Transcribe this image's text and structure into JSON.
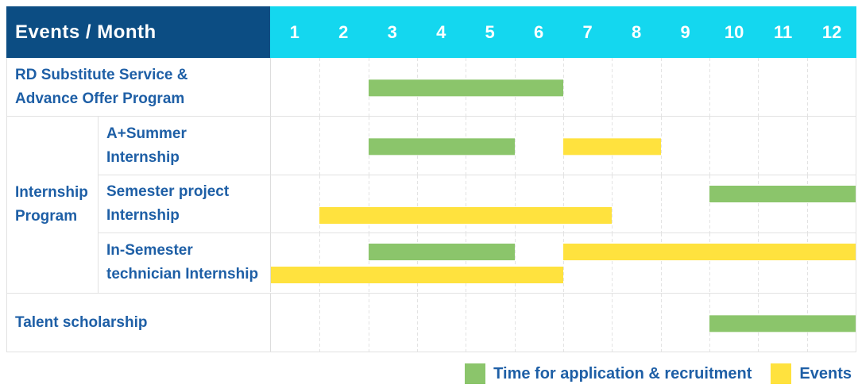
{
  "header": {
    "title": "Events / Month",
    "months": [
      "1",
      "2",
      "3",
      "4",
      "5",
      "6",
      "7",
      "8",
      "9",
      "10",
      "11",
      "12"
    ]
  },
  "colors": {
    "header_bg": "#0C4D83",
    "month_header_bg": "#14D7EF",
    "label_text": "#1E5FA6",
    "application_green": "#8BC56B",
    "events_yellow": "#FFE23E",
    "grid_line": "#E3E3E3"
  },
  "chart_data": {
    "type": "bar",
    "subtype": "gantt-timeline",
    "x_categories": [
      "1",
      "2",
      "3",
      "4",
      "5",
      "6",
      "7",
      "8",
      "9",
      "10",
      "11",
      "12"
    ],
    "x_range": [
      1,
      12
    ],
    "grid": true,
    "series_colors": {
      "Time for application & recruitment": "#8BC56B",
      "Events": "#FFE23E"
    },
    "rows": [
      {
        "group": "",
        "label": "RD Substitute Service &\nAdvance Offer Program",
        "bars": [
          {
            "series": "Time for application & recruitment",
            "start_month": 3,
            "end_month": 6,
            "lane": "center"
          }
        ]
      },
      {
        "group": "Internship\nProgram",
        "label": "A+Summer\nInternship",
        "bars": [
          {
            "series": "Time for application & recruitment",
            "start_month": 3,
            "end_month": 5,
            "lane": "center"
          },
          {
            "series": "Events",
            "start_month": 7,
            "end_month": 8,
            "lane": "center"
          }
        ]
      },
      {
        "group": "Internship\nProgram",
        "label": "Semester project\nInternship",
        "bars": [
          {
            "series": "Time for application & recruitment",
            "start_month": 10,
            "end_month": 12,
            "lane": "top"
          },
          {
            "series": "Events",
            "start_month": 2,
            "end_month": 7,
            "lane": "bottom"
          }
        ]
      },
      {
        "group": "Internship\nProgram",
        "label": "In-Semester\ntechnician Internship",
        "bars": [
          {
            "series": "Time for application & recruitment",
            "start_month": 3,
            "end_month": 5,
            "lane": "top"
          },
          {
            "series": "Events",
            "start_month": 7,
            "end_month": 12,
            "lane": "top"
          },
          {
            "series": "Events",
            "start_month": 1,
            "end_month": 6,
            "lane": "bottom"
          }
        ]
      },
      {
        "group": "",
        "label": "Talent scholarship",
        "bars": [
          {
            "series": "Time for application & recruitment",
            "start_month": 10,
            "end_month": 12,
            "lane": "center"
          }
        ]
      }
    ],
    "legend": [
      {
        "label": "Time for application & recruitment",
        "color": "#8BC56B"
      },
      {
        "label": "Events",
        "color": "#FFE23E"
      }
    ],
    "legend_position": "bottom-right"
  }
}
